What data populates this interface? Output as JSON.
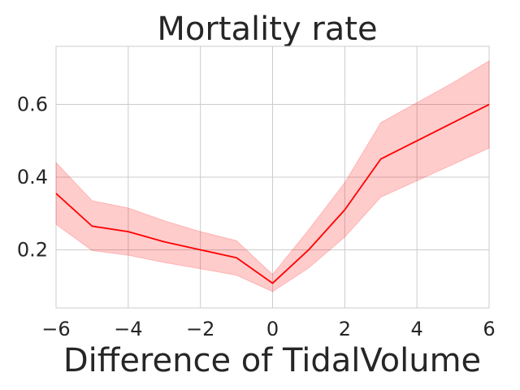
{
  "chart_data": {
    "type": "line",
    "title": "Mortality rate",
    "xlabel": "Difference of TidalVolume",
    "ylabel": "",
    "xlim": [
      -6,
      6
    ],
    "ylim": [
      0.04,
      0.76
    ],
    "x_ticks": [
      -6,
      -4,
      -2,
      0,
      2,
      4,
      6
    ],
    "x_tick_labels": [
      "−6",
      "−4",
      "−2",
      "0",
      "2",
      "4",
      "6"
    ],
    "y_ticks": [
      0.2,
      0.4,
      0.6
    ],
    "y_tick_labels": [
      "0.2",
      "0.4",
      "0.6"
    ],
    "grid": true,
    "series": [
      {
        "color": "#ff0000",
        "band_color": "#ff0000",
        "x": [
          -6,
          -5,
          -4,
          -3,
          -2,
          -1,
          0,
          1,
          2,
          3,
          4,
          5,
          6
        ],
        "y": [
          0.355,
          0.265,
          0.25,
          0.222,
          0.2,
          0.178,
          0.108,
          0.2,
          0.31,
          0.45,
          0.5,
          0.55,
          0.6
        ],
        "lower": [
          0.27,
          0.198,
          0.185,
          0.165,
          0.148,
          0.13,
          0.085,
          0.15,
          0.235,
          0.345,
          0.39,
          0.435,
          0.48
        ],
        "upper": [
          0.44,
          0.335,
          0.315,
          0.28,
          0.25,
          0.225,
          0.132,
          0.255,
          0.385,
          0.55,
          0.605,
          0.66,
          0.72
        ]
      }
    ]
  }
}
